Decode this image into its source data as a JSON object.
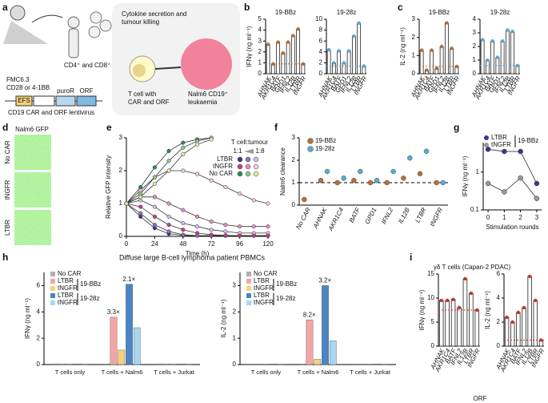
{
  "panel_labels": [
    "a",
    "b",
    "c",
    "d",
    "e",
    "f",
    "g",
    "h",
    "i"
  ],
  "diagram": {
    "cells": "CD4⁺ and CD8⁺ T cells",
    "scfv": "FMC6.3",
    "costim": "CD28 or 4-1BB",
    "promoter": "EFS",
    "puro": "puroR",
    "orf": "ORF",
    "virus": "CD19 CAR and ORF lentivirus",
    "box_title": [
      "Cytokine secretion and",
      "tumour killing"
    ],
    "tcell": [
      "T cell with",
      "CAR and ORF"
    ],
    "tumour": [
      "Nalm6 CD19⁺",
      "leukaemia"
    ]
  },
  "images": {
    "title": "Nalm6 GFP",
    "rows": [
      "No CAR",
      "tNGFR",
      "LTBR"
    ]
  },
  "chart_data": [
    {
      "type": "bar",
      "title": "19-BBz",
      "ylabel": "IFNγ (ng ml⁻¹)",
      "categories": [
        "AHNAK",
        "AKR1C4",
        "BATF",
        "GPD1",
        "IFNL2",
        "IL12B",
        "LTBR",
        "tNGFR"
      ],
      "values": [
        2.7,
        0.9,
        2.9,
        1.9,
        2.9,
        3.5,
        4.1,
        0.9
      ],
      "color": "#b5703a",
      "ylim": [
        0,
        5
      ],
      "yticks": [
        0,
        1,
        2,
        3,
        4,
        5
      ]
    },
    {
      "type": "bar",
      "title": "19-28z",
      "categories": [
        "AHNAK",
        "AKR1C4",
        "BATF",
        "GPD1",
        "IFNL2",
        "IL12B",
        "LTBR",
        "tNGFR"
      ],
      "values": [
        4.4,
        2.0,
        4.2,
        2.0,
        4.2,
        6.9,
        9.3,
        1.4
      ],
      "color": "#5aaad0",
      "ylim": [
        0,
        10
      ],
      "yticks": [
        0,
        2,
        4,
        6,
        8,
        10
      ]
    },
    {
      "type": "bar",
      "title": "19-BBz",
      "ylabel": "IL-2 (ng ml⁻¹)",
      "categories": [
        "AHNAK",
        "AKR1C4",
        "BATF",
        "GPD1",
        "IFNL2",
        "IL12B",
        "LTBR",
        "tNGFR"
      ],
      "values": [
        1.3,
        0.2,
        1.3,
        0.3,
        1.5,
        2.8,
        1.4,
        0.4
      ],
      "color": "#b5703a",
      "ylim": [
        0,
        3
      ],
      "yticks": [
        0,
        1,
        2,
        3
      ]
    },
    {
      "type": "bar",
      "title": "19-28z",
      "categories": [
        "AHNAK",
        "AKR1C4",
        "BATF",
        "GPD1",
        "IFNL2",
        "IL12B",
        "LTBR",
        "tNGFR"
      ],
      "values": [
        2.5,
        1.0,
        2.4,
        1.2,
        2.4,
        3.2,
        3.1,
        0.6
      ],
      "color": "#5aaad0",
      "ylim": [
        0,
        4
      ],
      "yticks": [
        0,
        1,
        2,
        3,
        4
      ]
    },
    {
      "type": "line",
      "xlabel": "Time (h)",
      "ylabel": "Relative GFP intensity",
      "legend_title": "T cell:tumour",
      "ratio_labels": [
        "1:1",
        "1:8"
      ],
      "x": [
        0,
        12,
        24,
        36,
        48,
        60,
        72,
        84,
        96,
        108,
        120
      ],
      "xlim": [
        0,
        120
      ],
      "xticks": [
        0,
        24,
        48,
        72,
        96,
        120
      ],
      "ylim": [
        0,
        3
      ],
      "yticks": [
        0,
        1,
        2,
        3
      ],
      "series": [
        {
          "name": "LTBR",
          "colors": [
            "#4a2e8c",
            "#8d6fc9",
            "#cdbdf0"
          ],
          "curves": [
            [
              1,
              0.6,
              0.25,
              0.08,
              0.03,
              0.02,
              0.02,
              0.02,
              0.02,
              0.02,
              0.02
            ],
            [
              1,
              0.7,
              0.35,
              0.15,
              0.05,
              0.02,
              0.02,
              0.02,
              0.02,
              0.02,
              0.02
            ],
            [
              1,
              1.1,
              0.9,
              0.6,
              0.4,
              0.3,
              0.2,
              0.15,
              0.1,
              0.1,
              0.1
            ]
          ]
        },
        {
          "name": "tNGFR",
          "colors": [
            "#c2407f",
            "#e58cb8",
            "#f6c8de"
          ],
          "curves": [
            [
              1,
              0.9,
              0.6,
              0.35,
              0.2,
              0.1,
              0.05,
              0.03,
              0.02,
              0.02,
              0.02
            ],
            [
              1,
              1.2,
              1.2,
              1.0,
              0.8,
              0.6,
              0.45,
              0.35,
              0.3,
              0.3,
              0.3
            ],
            [
              1,
              1.4,
              1.8,
              2.0,
              2.0,
              1.9,
              1.7,
              1.5,
              1.3,
              1.1,
              1.0
            ]
          ]
        },
        {
          "name": "No CAR",
          "colors": [
            "#2e8b57",
            "#8fc98a",
            "#dcec9a"
          ],
          "curves": [
            [
              1,
              1.5,
              2.1,
              2.6,
              2.85,
              2.95,
              3.0,
              null,
              null,
              null,
              null
            ],
            [
              1,
              1.3,
              1.8,
              2.3,
              2.7,
              2.9,
              3.0,
              null,
              null,
              null,
              null
            ],
            [
              1,
              1.2,
              1.6,
              2.0,
              2.5,
              2.8,
              2.95,
              null,
              null,
              null,
              null
            ]
          ]
        }
      ]
    },
    {
      "type": "dot",
      "ylabel": "Nalm6 clearance",
      "categories": [
        "No CAR",
        "AHNAK",
        "AKR1C4",
        "BATF",
        "GPD1",
        "IFNL2",
        "IL12B",
        "LTBR",
        "tNGFR"
      ],
      "reference_line": 1,
      "ylim": [
        0,
        3
      ],
      "yticks": [
        0,
        1,
        2,
        3
      ],
      "series": [
        {
          "name": "19-BBz",
          "color": "#b5703a",
          "values": [
            0.25,
            1.1,
            1.0,
            1.1,
            1.0,
            1.0,
            1.2,
            1.4,
            1.0
          ]
        },
        {
          "name": "19-28z",
          "color": "#5aaad0",
          "values": [
            null,
            1.5,
            1.2,
            1.5,
            1.1,
            1.5,
            2.1,
            2.4,
            1.0
          ]
        }
      ]
    },
    {
      "type": "line",
      "log": true,
      "ylabel": "IFNγ (ng ml⁻¹)",
      "xlabel": "Stimulation rounds",
      "legend_note": "19-BBz",
      "x": [
        0,
        1,
        2,
        3
      ],
      "xlim": [
        -0.3,
        3.3
      ],
      "xticks": [
        0,
        1,
        2,
        3
      ],
      "ylim": [
        0.1,
        6
      ],
      "yticks": [
        0.1,
        1
      ],
      "series": [
        {
          "name": "LTBR",
          "color": "#4a2e8c",
          "values": [
            4,
            3.5,
            3.5,
            0.5
          ]
        },
        {
          "name": "tNGFR",
          "color": "#999999",
          "values": [
            0.5,
            0.3,
            0.7,
            0.2
          ]
        }
      ]
    },
    {
      "type": "groupbar",
      "title": "Diffuse large B-cell lymphoma patient PBMCs",
      "ylabel": "IFNγ (ng ml⁻¹)",
      "categories": [
        "T cells only",
        "T cells + Nalm6",
        "T cells + Jurkat"
      ],
      "legend_groups": [
        "19-BBz",
        "19-28z"
      ],
      "annotations": [
        "3.3×",
        "2.1×"
      ],
      "ylim": [
        0,
        7
      ],
      "yticks": [
        0,
        2,
        4,
        6
      ],
      "series": [
        {
          "name": "No CAR",
          "color": "#b0b0b0",
          "values": [
            0.05,
            0.05,
            0.05
          ]
        },
        {
          "name": "LTBR",
          "color": "#f4a6a6",
          "values": [
            0.05,
            3.6,
            0.05
          ]
        },
        {
          "name": "tNGFR",
          "color": "#f5d27a",
          "values": [
            0.05,
            1.1,
            0.05
          ]
        },
        {
          "name": "LTBR",
          "color": "#4a86c5",
          "values": [
            0.05,
            6.1,
            0.05
          ]
        },
        {
          "name": "tNGFR",
          "color": "#a9d6f0",
          "values": [
            0.05,
            2.8,
            0.05
          ]
        }
      ]
    },
    {
      "type": "groupbar",
      "ylabel": "IL-2 (ng ml⁻¹)",
      "categories": [
        "T cells only",
        "T cells + Nalm6",
        "T cells + Jurkat"
      ],
      "legend_groups": [
        "19-BBz",
        "19-28z"
      ],
      "annotations": [
        "8.2×",
        "3.2×"
      ],
      "ylim": [
        0,
        3.5
      ],
      "yticks": [
        0,
        1,
        2,
        3
      ],
      "series": [
        {
          "name": "No CAR",
          "color": "#b0b0b0",
          "values": [
            0.02,
            0.02,
            0.02
          ]
        },
        {
          "name": "LTBR",
          "color": "#f4a6a6",
          "values": [
            0.02,
            1.7,
            0.02
          ]
        },
        {
          "name": "tNGFR",
          "color": "#f5d27a",
          "values": [
            0.02,
            0.2,
            0.02
          ]
        },
        {
          "name": "LTBR",
          "color": "#4a86c5",
          "values": [
            0.02,
            3.0,
            0.02
          ]
        },
        {
          "name": "tNGFR",
          "color": "#a9d6f0",
          "values": [
            0.02,
            0.9,
            0.02
          ]
        }
      ]
    },
    {
      "type": "bar",
      "title": "γδ T cells (Capan-2 PDAC)",
      "ylabel": "IFNγ (ng ml⁻¹)",
      "categories": [
        "AHNAK",
        "AKR1C4",
        "BATF",
        "IFNL2",
        "IL12B",
        "LTBR",
        "tNGFR"
      ],
      "values": [
        9.5,
        9.5,
        9.7,
        8.0,
        14.0,
        11.0,
        7.5
      ],
      "color": "#c0392b",
      "ylim": [
        0,
        15
      ],
      "yticks": [
        0,
        5,
        10,
        15
      ]
    },
    {
      "type": "bar",
      "ylabel": "IL-2 (ng ml⁻¹)",
      "xlabel": "ORF",
      "categories": [
        "AHNAK",
        "AKR1C4",
        "BATF",
        "IFNL2",
        "IL12B",
        "LTBR",
        "tNGFR"
      ],
      "values": [
        2.4,
        2.0,
        2.8,
        3.2,
        5.8,
        3.8,
        0.5
      ],
      "color": "#c0392b",
      "ylim": [
        0,
        6
      ],
      "yticks": [
        0,
        2,
        4,
        6
      ]
    }
  ]
}
